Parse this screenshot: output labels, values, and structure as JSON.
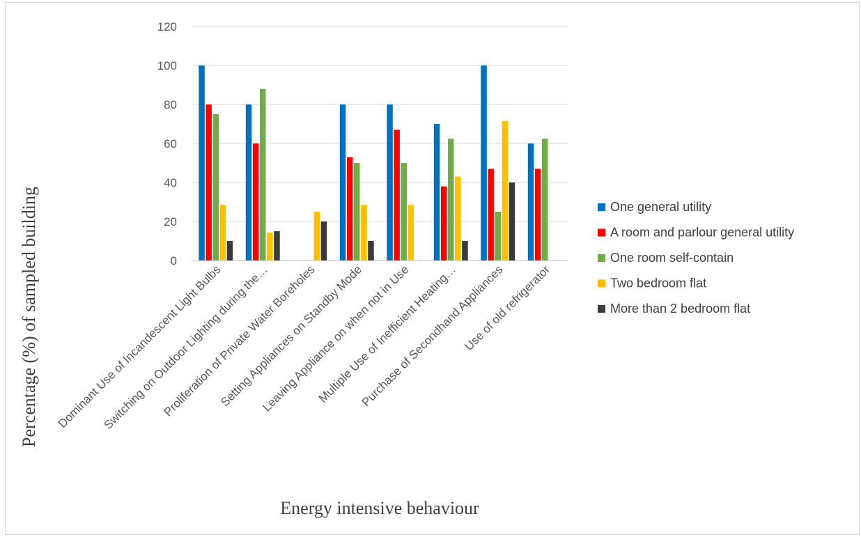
{
  "chart_data": {
    "type": "bar",
    "title": "",
    "xlabel": "Energy intensive behaviour",
    "ylabel": "Percentage (%) of sampled building",
    "ylim": [
      0,
      120
    ],
    "yticks": [
      0,
      20,
      40,
      60,
      80,
      100,
      120
    ],
    "grid": true,
    "legend_position": "right",
    "categories": [
      "Dominant Use of Incandescent Light Bulbs",
      "Switching on Outdoor Lighting during the…",
      "Proliferation of Private Water Boreholes",
      "Setting Appliances on Standby Mode",
      "Leaving Appliance on when not in Use",
      "Multiple Use of Inefficient Heating…",
      "Purchase of Secondhand Appliances",
      "Use of old refrigerator"
    ],
    "series": [
      {
        "name": "One general utility",
        "color": "#0070C0",
        "values": [
          100,
          80,
          0,
          80,
          80,
          70,
          100,
          60
        ]
      },
      {
        "name": "A room and parlour general utility",
        "color": "#FF0000",
        "values": [
          80,
          60,
          0,
          53,
          67,
          38,
          47,
          47
        ]
      },
      {
        "name": "One room self-contain",
        "color": "#70AD47",
        "values": [
          75,
          88,
          0,
          50,
          50,
          62.5,
          25,
          62.5
        ]
      },
      {
        "name": "Two bedroom flat",
        "color": "#FFC000",
        "values": [
          28.5,
          14.3,
          25,
          28.5,
          28.5,
          43,
          71.5,
          0
        ]
      },
      {
        "name": "More than 2 bedroom flat",
        "color": "#3A3A3A",
        "values": [
          10,
          15,
          20,
          10,
          0,
          10,
          40,
          0
        ]
      }
    ]
  }
}
